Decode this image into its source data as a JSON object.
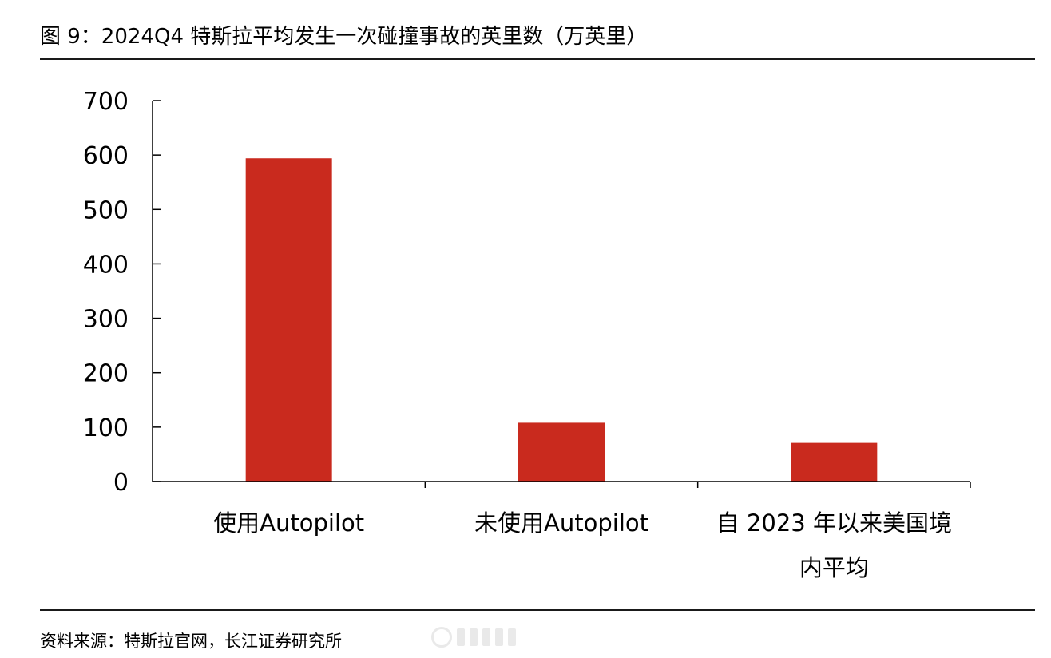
{
  "figure": {
    "title": "图 9：2024Q4 特斯拉平均发生一次碰撞事故的英里数（万英里）",
    "source": "资料来源：特斯拉官网，长江证券研究所"
  },
  "colors": {
    "bar": "#c92a1e",
    "axis": "#000000"
  },
  "chart_data": {
    "type": "bar",
    "categories": [
      [
        "使用Autopilot"
      ],
      [
        "未使用Autopilot"
      ],
      [
        "自 2023 年以来美国境",
        "内平均"
      ]
    ],
    "values": [
      594,
      108,
      71
    ],
    "ylim": [
      0,
      700
    ],
    "yticks": [
      "0",
      "100",
      "200",
      "300",
      "400",
      "500",
      "600",
      "700"
    ],
    "legend": "none",
    "grid": false
  }
}
